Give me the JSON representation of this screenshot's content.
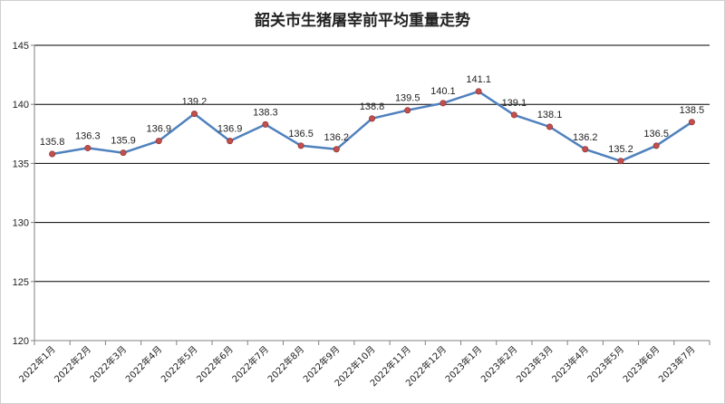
{
  "chart_data": {
    "type": "line",
    "title": "韶关市生猪屠宰前平均重量走势",
    "xlabel": "",
    "ylabel": "",
    "ylim": [
      120,
      145
    ],
    "yticks": [
      "120",
      "125",
      "130",
      "135",
      "140",
      "145"
    ],
    "grid": true,
    "legend": "none",
    "categories": [
      "2022年1月",
      "2022年2月",
      "2022年3月",
      "2022年4月",
      "2022年5月",
      "2022年6月",
      "2022年7月",
      "2022年8月",
      "2022年9月",
      "2022年10月",
      "2022年11月",
      "2022年12月",
      "2023年1月",
      "2023年2月",
      "2023年3月",
      "2023年4月",
      "2023年5月",
      "2023年6月",
      "2023年7月"
    ],
    "series": [
      {
        "name": "",
        "values": [
          135.8,
          136.3,
          135.9,
          136.9,
          139.2,
          136.9,
          138.3,
          136.5,
          136.2,
          138.8,
          139.5,
          140.1,
          141.1,
          139.1,
          138.1,
          136.2,
          135.2,
          136.5,
          138.5
        ],
        "labels": [
          "135.8",
          "136.3",
          "135.9",
          "136.9",
          "139.2",
          "136.9",
          "138.3",
          "136.5",
          "136.2",
          "138.8",
          "139.5",
          "140.1",
          "141.1",
          "139.1",
          "138.1",
          "136.2",
          "135.2",
          "136.5",
          "138.5"
        ],
        "line_color": "#4f81bd",
        "marker_color": "#c0504d"
      }
    ]
  }
}
